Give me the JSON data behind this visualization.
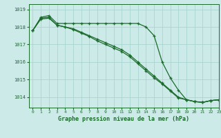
{
  "title": "Graphe pression niveau de la mer (hPa)",
  "bg_color": "#cceae8",
  "grid_color": "#aad4d1",
  "line_color": "#1a6b2a",
  "xlim": [
    -0.5,
    23
  ],
  "ylim": [
    1013.4,
    1019.3
  ],
  "yticks": [
    1014,
    1015,
    1016,
    1017,
    1018,
    1019
  ],
  "xticks": [
    0,
    1,
    2,
    3,
    4,
    5,
    6,
    7,
    8,
    9,
    10,
    11,
    12,
    13,
    14,
    15,
    16,
    17,
    18,
    19,
    20,
    21,
    22,
    23
  ],
  "series1": [
    1017.8,
    1018.55,
    1018.65,
    1018.2,
    1018.2,
    1018.2,
    1018.2,
    1018.2,
    1018.2,
    1018.2,
    1018.2,
    1018.2,
    1018.2,
    1018.2,
    1018.0,
    1017.5,
    1016.0,
    1015.1,
    1014.4,
    1013.85,
    1013.75,
    1013.7,
    1013.8,
    1013.85
  ],
  "series2": [
    1017.8,
    1018.5,
    1018.55,
    1018.1,
    1018.0,
    1017.9,
    1017.7,
    1017.5,
    1017.3,
    1017.1,
    1016.9,
    1016.7,
    1016.4,
    1016.0,
    1015.6,
    1015.2,
    1014.8,
    1014.4,
    1014.0,
    1013.85,
    1013.75,
    1013.7,
    1013.8,
    1013.85
  ],
  "series3": [
    1017.8,
    1018.45,
    1018.5,
    1018.1,
    1018.0,
    1017.85,
    1017.65,
    1017.45,
    1017.2,
    1017.0,
    1016.8,
    1016.6,
    1016.3,
    1015.9,
    1015.5,
    1015.1,
    1014.75,
    1014.35,
    1013.95,
    1013.85,
    1013.75,
    1013.7,
    1013.8,
    1013.85
  ]
}
